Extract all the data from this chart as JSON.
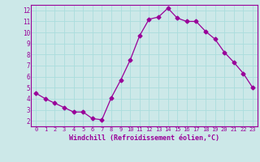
{
  "x": [
    0,
    1,
    2,
    3,
    4,
    5,
    6,
    7,
    8,
    9,
    10,
    11,
    12,
    13,
    14,
    15,
    16,
    17,
    18,
    19,
    20,
    21,
    22,
    23
  ],
  "y": [
    4.5,
    4.0,
    3.6,
    3.2,
    2.8,
    2.8,
    2.2,
    2.1,
    4.1,
    5.7,
    7.5,
    9.7,
    11.2,
    11.4,
    12.2,
    11.3,
    11.0,
    11.0,
    10.1,
    9.4,
    8.2,
    7.3,
    6.3,
    5.0
  ],
  "line_color": "#990099",
  "marker": "D",
  "marker_size": 2.5,
  "bg_color": "#cce8e8",
  "grid_color": "#aadddd",
  "xlabel": "Windchill (Refroidissement éolien,°C)",
  "xlabel_color": "#990099",
  "tick_color": "#990099",
  "xlim": [
    -0.5,
    23.5
  ],
  "ylim": [
    1.5,
    12.5
  ],
  "yticks": [
    2,
    3,
    4,
    5,
    6,
    7,
    8,
    9,
    10,
    11,
    12
  ],
  "xticks": [
    0,
    1,
    2,
    3,
    4,
    5,
    6,
    7,
    8,
    9,
    10,
    11,
    12,
    13,
    14,
    15,
    16,
    17,
    18,
    19,
    20,
    21,
    22,
    23
  ]
}
